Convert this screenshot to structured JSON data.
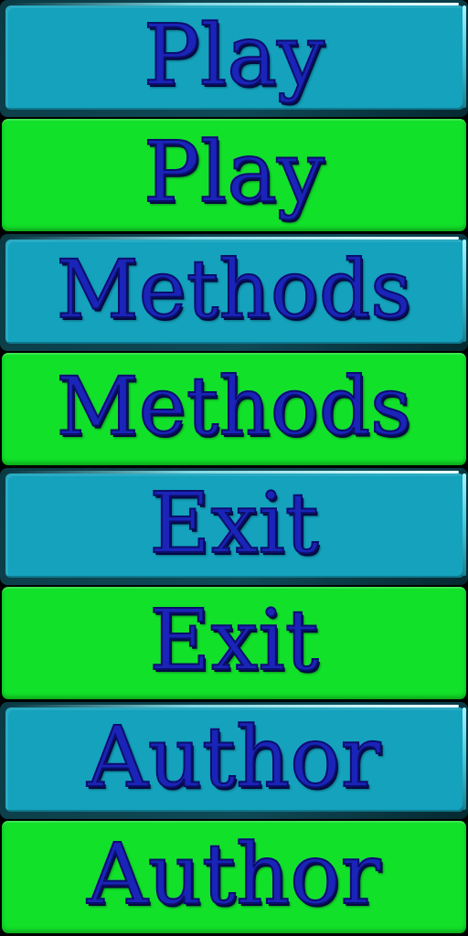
{
  "menu_sheet": {
    "buttons": [
      {
        "label": "Play",
        "state": "normal",
        "color": "#14a2bd"
      },
      {
        "label": "Play",
        "state": "hover",
        "color": "#12e12a"
      },
      {
        "label": "Methods",
        "state": "normal",
        "color": "#14a2bd"
      },
      {
        "label": "Methods",
        "state": "hover",
        "color": "#12e12a"
      },
      {
        "label": "Exit",
        "state": "normal",
        "color": "#14a2bd"
      },
      {
        "label": "Exit",
        "state": "hover",
        "color": "#12e12a"
      },
      {
        "label": "Author",
        "state": "normal",
        "color": "#14a2bd"
      },
      {
        "label": "Author",
        "state": "hover",
        "color": "#12e12a"
      }
    ],
    "text_color": "#1a24b8"
  }
}
